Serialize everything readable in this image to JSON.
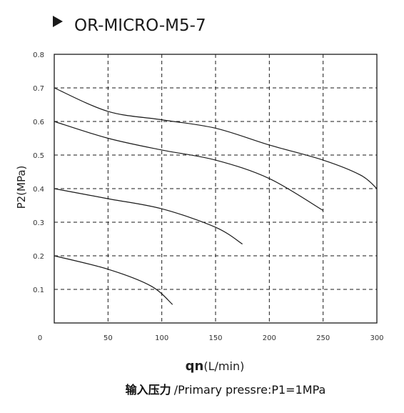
{
  "chart_data": {
    "type": "line",
    "title": "OR-MICRO-M5-7",
    "xlabel_main": "qn",
    "xlabel_unit": "(L/min)",
    "ylabel": "P2(MPa)",
    "caption_cn": "输入压力",
    "caption_en": "/Primary pressre:P1=1MPa",
    "xlim": [
      0,
      300
    ],
    "ylim": [
      0,
      0.8
    ],
    "x_ticks": [
      "0",
      "50",
      "100",
      "150",
      "200",
      "250",
      "300"
    ],
    "y_ticks": [
      "0.1",
      "0.2",
      "0.3",
      "0.4",
      "0.5",
      "0.6",
      "0.7",
      "0.8"
    ],
    "grid": true,
    "series": [
      {
        "points": [
          [
            0,
            0.7
          ],
          [
            50,
            0.63
          ],
          [
            100,
            0.605
          ],
          [
            150,
            0.58
          ],
          [
            200,
            0.53
          ],
          [
            250,
            0.485
          ],
          [
            285,
            0.44
          ],
          [
            300,
            0.4
          ]
        ]
      },
      {
        "points": [
          [
            0,
            0.6
          ],
          [
            50,
            0.55
          ],
          [
            100,
            0.515
          ],
          [
            150,
            0.485
          ],
          [
            200,
            0.43
          ],
          [
            250,
            0.335
          ]
        ]
      },
      {
        "points": [
          [
            0,
            0.4
          ],
          [
            50,
            0.37
          ],
          [
            100,
            0.34
          ],
          [
            150,
            0.285
          ],
          [
            175,
            0.235
          ]
        ]
      },
      {
        "points": [
          [
            0,
            0.2
          ],
          [
            50,
            0.16
          ],
          [
            90,
            0.11
          ],
          [
            110,
            0.055
          ]
        ]
      }
    ]
  }
}
